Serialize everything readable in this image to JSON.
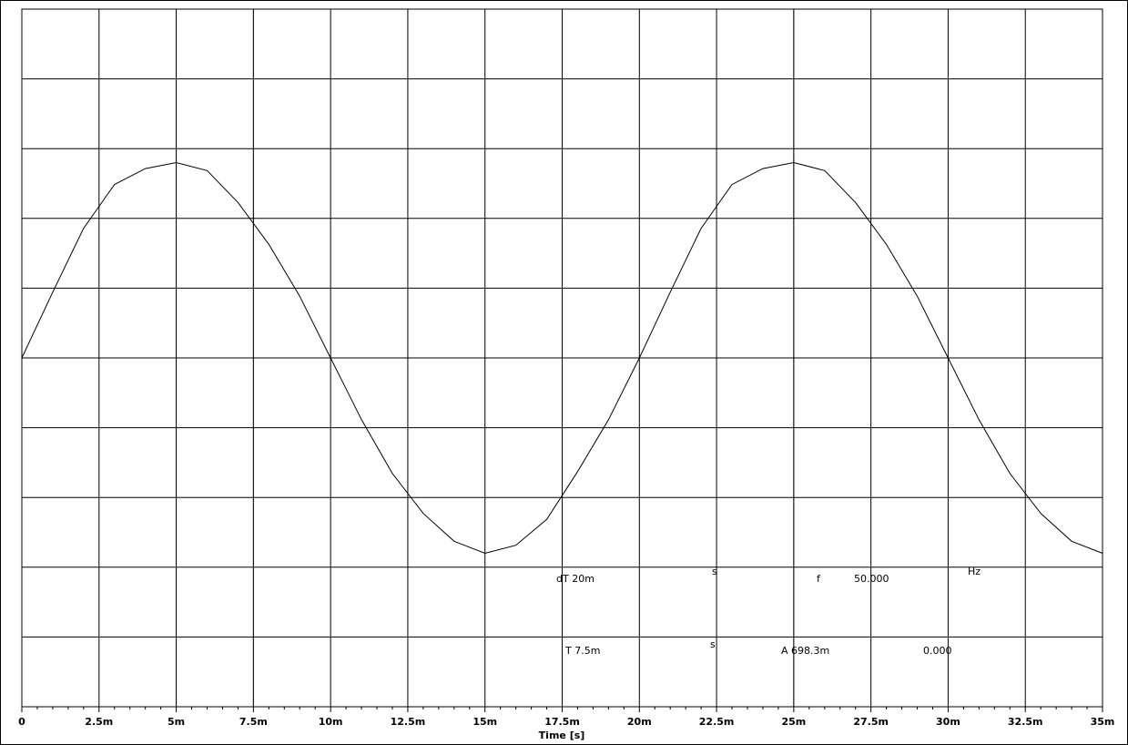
{
  "chart_data": {
    "type": "line",
    "x_label": "Time [s]",
    "x": [
      0,
      0.001,
      0.002,
      0.003,
      0.004,
      0.005,
      0.006,
      0.007,
      0.008,
      0.009,
      0.01,
      0.011,
      0.012,
      0.013,
      0.014,
      0.015,
      0.016,
      0.017,
      0.018,
      0.019,
      0.02,
      0.021,
      0.022,
      0.023,
      0.024,
      0.025,
      0.026,
      0.027,
      0.028,
      0.029,
      0.03,
      0.031,
      0.032,
      0.033,
      0.034,
      0.035
    ],
    "series": [
      {
        "color": "#000000",
        "values": [
          0,
          0.33,
          0.65,
          0.87,
          0.95,
          0.98,
          0.94,
          0.78,
          0.57,
          0.31,
          0,
          -0.31,
          -0.58,
          -0.78,
          -0.92,
          -0.98,
          -0.94,
          -0.81,
          -0.57,
          -0.31,
          0,
          0.33,
          0.65,
          0.87,
          0.95,
          0.98,
          0.94,
          0.78,
          0.57,
          0.31,
          0,
          -0.31,
          -0.58,
          -0.78,
          -0.92,
          -0.98
        ]
      }
    ],
    "xlim": [
      0,
      0.035
    ],
    "xticks": [
      {
        "value": 0,
        "label": "0"
      },
      {
        "value": 0.0025,
        "label": "2.5m"
      },
      {
        "value": 0.005,
        "label": "5m"
      },
      {
        "value": 0.0075,
        "label": "7.5m"
      },
      {
        "value": 0.01,
        "label": "10m"
      },
      {
        "value": 0.0125,
        "label": "12.5m"
      },
      {
        "value": 0.015,
        "label": "15m"
      },
      {
        "value": 0.0175,
        "label": "17.5m"
      },
      {
        "value": 0.02,
        "label": "20m"
      },
      {
        "value": 0.0225,
        "label": "22.5m"
      },
      {
        "value": 0.025,
        "label": "25m"
      },
      {
        "value": 0.0275,
        "label": "27.5m"
      },
      {
        "value": 0.03,
        "label": "30m"
      },
      {
        "value": 0.0325,
        "label": "32.5m"
      },
      {
        "value": 0.035,
        "label": "35m"
      }
    ],
    "ylim": [
      -1.75,
      1.75
    ],
    "cursors": [
      0.005,
      0.0075,
      0.025
    ],
    "readouts": [
      "dT  20m",
      "s",
      "f",
      "50.000",
      "Hz",
      "T  7.5m",
      "s",
      "A  698.3m",
      "0.000"
    ]
  }
}
